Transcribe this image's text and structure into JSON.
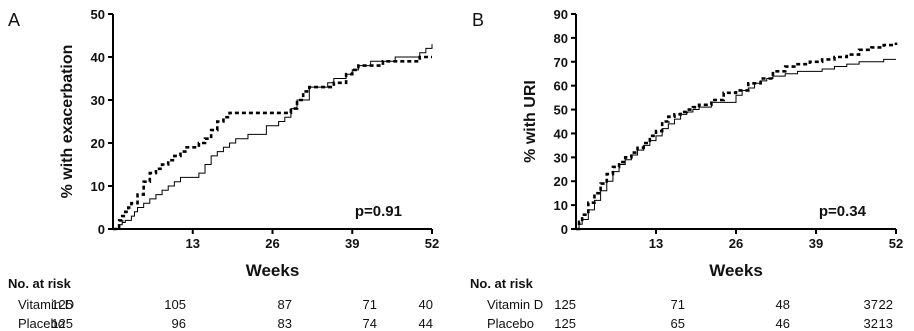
{
  "chart_data": [
    {
      "type": "line",
      "panel_label": "A",
      "ylabel": "% with exacerbation",
      "xlabel": "Weeks",
      "xlim": [
        0,
        52
      ],
      "ylim": [
        0,
        50
      ],
      "xticks": [
        "13",
        "26",
        "39",
        "52"
      ],
      "yticks": [
        "0",
        "10",
        "20",
        "30",
        "40",
        "50"
      ],
      "annotation": "p=0.91",
      "series": [
        {
          "style": "solid",
          "x": [
            0,
            1,
            1.5,
            2,
            3,
            3.5,
            4,
            5,
            6,
            7,
            8,
            9,
            10,
            11,
            12,
            13,
            14,
            15,
            16,
            17,
            18,
            19,
            20,
            22,
            25,
            26,
            27,
            28,
            29,
            30,
            32,
            34,
            35,
            36,
            38,
            39,
            40,
            41,
            42,
            44,
            46,
            48,
            50,
            51,
            52
          ],
          "y": [
            0,
            1,
            1.5,
            2,
            3,
            4,
            5,
            6,
            7,
            8,
            9,
            10,
            11,
            12,
            12,
            12,
            13,
            15,
            17,
            18,
            19,
            20,
            21,
            22,
            24,
            24,
            25,
            26,
            28,
            30,
            33,
            33,
            34,
            35,
            36,
            37,
            38,
            38,
            39,
            39,
            40,
            40,
            41,
            42,
            43
          ]
        },
        {
          "style": "dashed",
          "x": [
            0,
            1,
            1.5,
            2,
            2.5,
            3,
            4,
            5,
            6,
            7,
            8,
            9,
            10,
            11,
            12,
            13,
            14,
            15,
            16,
            17,
            18,
            19,
            20,
            24,
            28,
            29,
            30,
            31,
            32,
            33,
            36,
            38,
            39,
            40,
            41,
            42,
            44,
            46,
            48,
            50,
            52
          ],
          "y": [
            0,
            2,
            3,
            4,
            5,
            6,
            8,
            11,
            13,
            14,
            15,
            16,
            17,
            18,
            19,
            19,
            20,
            21,
            23,
            25,
            26,
            27,
            27,
            27,
            27,
            28,
            30,
            32,
            33,
            33,
            34,
            36,
            37,
            38,
            38,
            38,
            39,
            39,
            39,
            40,
            40
          ]
        }
      ]
    },
    {
      "type": "line",
      "panel_label": "B",
      "ylabel": "% with URI",
      "xlabel": "Weeks",
      "xlim": [
        0,
        52
      ],
      "ylim": [
        0,
        90
      ],
      "xticks": [
        "13",
        "26",
        "39",
        "52"
      ],
      "yticks": [
        "0",
        "10",
        "20",
        "30",
        "40",
        "50",
        "60",
        "70",
        "80",
        "90"
      ],
      "annotation": "p=0.34",
      "series": [
        {
          "style": "solid",
          "x": [
            0,
            0.5,
            1,
            2,
            3,
            4,
            5,
            6,
            7,
            8,
            9,
            10,
            11,
            12,
            13,
            14,
            15,
            16,
            17,
            18,
            19,
            20,
            22,
            24,
            26,
            27,
            28,
            29,
            30,
            31,
            32,
            34,
            36,
            38,
            40,
            42,
            44,
            46,
            48,
            50,
            52
          ],
          "y": [
            0,
            2,
            4,
            8,
            12,
            16,
            20,
            24,
            27,
            29,
            31,
            33,
            35,
            37,
            39,
            42,
            44,
            46,
            48,
            49,
            50,
            51,
            53,
            53,
            56,
            58,
            59,
            61,
            62,
            63,
            64,
            65,
            66,
            66,
            67,
            68,
            69,
            70,
            70,
            71,
            71
          ]
        },
        {
          "style": "dashed",
          "x": [
            0,
            0.5,
            1,
            2,
            3,
            4,
            5,
            6,
            7,
            8,
            9,
            10,
            11,
            12,
            13,
            14,
            15,
            16,
            17,
            18,
            19,
            20,
            22,
            24,
            26,
            28,
            30,
            32,
            34,
            36,
            38,
            40,
            42,
            44,
            46,
            48,
            50,
            52
          ],
          "y": [
            0,
            3,
            6,
            11,
            15,
            19,
            23,
            26,
            28,
            30,
            32,
            34,
            36,
            39,
            41,
            45,
            47,
            48,
            49,
            50,
            51,
            52,
            54,
            57,
            58,
            61,
            63,
            66,
            68,
            69,
            70,
            71,
            72,
            73,
            75,
            76,
            77,
            78
          ]
        }
      ]
    }
  ],
  "risk_tables": [
    {
      "header": "No. at risk",
      "rows": [
        {
          "label": "Vitamin D",
          "values": [
            "125",
            "105",
            "87",
            "71",
            "40"
          ]
        },
        {
          "label": "Placebo",
          "values": [
            "125",
            "96",
            "83",
            "74",
            "44"
          ]
        }
      ]
    },
    {
      "header": "No. at risk",
      "rows": [
        {
          "label": "Vitamin D",
          "values": [
            "125",
            "71",
            "48",
            "37",
            "22"
          ]
        },
        {
          "label": "Placebo",
          "values": [
            "125",
            "65",
            "46",
            "32",
            "13"
          ]
        }
      ]
    }
  ]
}
